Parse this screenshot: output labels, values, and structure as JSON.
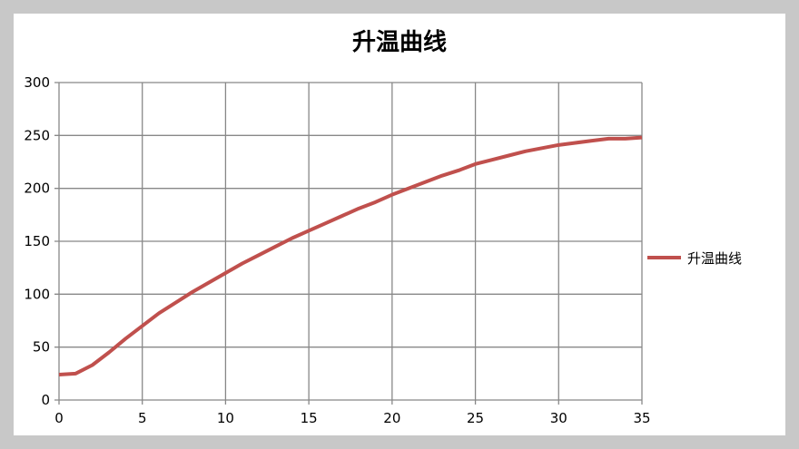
{
  "chart_data": {
    "type": "line",
    "title": "升温曲线",
    "xlabel": "",
    "ylabel": "",
    "xlim": [
      0,
      35
    ],
    "ylim": [
      0,
      300
    ],
    "xticks": [
      0,
      5,
      10,
      15,
      20,
      25,
      30,
      35
    ],
    "yticks": [
      0,
      50,
      100,
      150,
      200,
      250,
      300
    ],
    "grid": true,
    "legend_position": "right",
    "series": [
      {
        "name": "升温曲线",
        "color": "#c0504d",
        "x": [
          0,
          1,
          2,
          3,
          4,
          5,
          6,
          7,
          8,
          9,
          10,
          11,
          12,
          13,
          14,
          15,
          16,
          17,
          18,
          19,
          20,
          21,
          22,
          23,
          24,
          25,
          26,
          27,
          28,
          29,
          30,
          31,
          32,
          33,
          34,
          35
        ],
        "values": [
          24,
          25,
          33,
          45,
          58,
          70,
          82,
          92,
          102,
          111,
          120,
          129,
          137,
          145,
          153,
          160,
          167,
          174,
          181,
          187,
          194,
          200,
          206,
          212,
          217,
          223,
          227,
          231,
          235,
          238,
          241,
          243,
          245,
          247,
          247,
          248
        ]
      }
    ]
  }
}
